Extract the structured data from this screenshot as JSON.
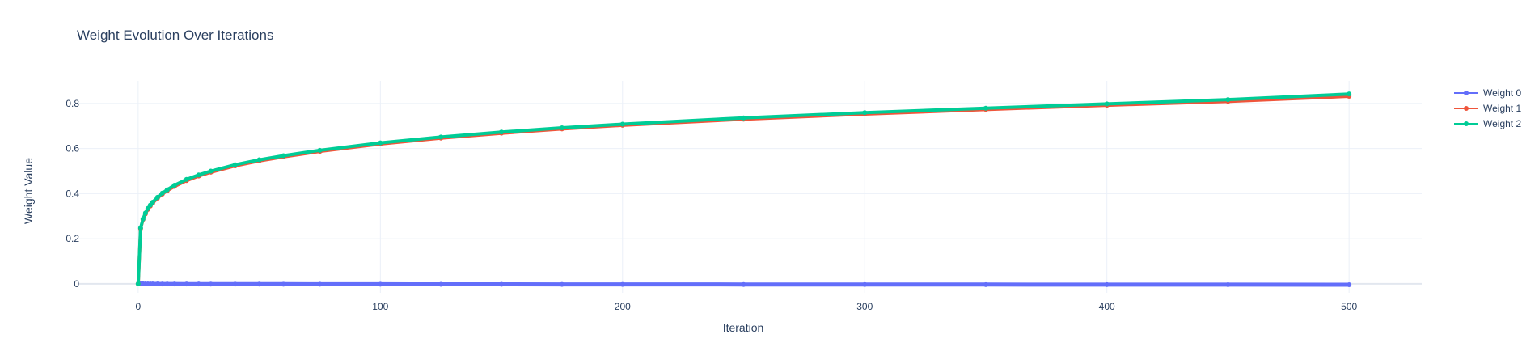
{
  "chart_data": {
    "type": "line",
    "title": "Weight Evolution Over Iterations",
    "xlabel": "Iteration",
    "ylabel": "Weight Value",
    "xlim": [
      -25,
      530
    ],
    "ylim": [
      -0.04,
      0.9
    ],
    "xticks": [
      0,
      100,
      200,
      300,
      400,
      500
    ],
    "xtick_labels": [
      "0",
      "100",
      "200",
      "300",
      "400",
      "500"
    ],
    "yticks": [
      0,
      0.2,
      0.4,
      0.6,
      0.8
    ],
    "ytick_labels": [
      "0",
      "0.2",
      "0.4",
      "0.6",
      "0.8"
    ],
    "grid": true,
    "legend_position": "top-right",
    "markers": true,
    "x": [
      0,
      1,
      2,
      3,
      4,
      5,
      6,
      8,
      10,
      12,
      15,
      20,
      25,
      30,
      40,
      50,
      60,
      75,
      100,
      125,
      150,
      175,
      200,
      250,
      300,
      350,
      400,
      450,
      500
    ],
    "series": [
      {
        "name": "Weight 0",
        "color": "#636efa",
        "values": [
          0,
          -0.0002,
          -0.0003,
          -0.0004,
          -0.0005,
          -0.0006,
          -0.0006,
          -0.0007,
          -0.0008,
          -0.0009,
          -0.001,
          -0.0011,
          -0.0012,
          -0.0013,
          -0.0015,
          -0.0016,
          -0.0017,
          -0.0019,
          -0.0021,
          -0.0023,
          -0.0025,
          -0.0027,
          -0.0028,
          -0.0031,
          -0.0033,
          -0.0035,
          -0.0037,
          -0.0039,
          -0.004
        ]
      },
      {
        "name": "Weight 1",
        "color": "#ef553b",
        "values": [
          0,
          0.245,
          0.285,
          0.31,
          0.33,
          0.345,
          0.358,
          0.38,
          0.398,
          0.413,
          0.432,
          0.458,
          0.478,
          0.495,
          0.523,
          0.545,
          0.563,
          0.587,
          0.62,
          0.646,
          0.668,
          0.687,
          0.703,
          0.73,
          0.753,
          0.773,
          0.792,
          0.809,
          0.832
        ]
      },
      {
        "name": "Weight 2",
        "color": "#00cc96",
        "values": [
          0,
          0.248,
          0.288,
          0.314,
          0.334,
          0.349,
          0.362,
          0.384,
          0.402,
          0.417,
          0.437,
          0.463,
          0.483,
          0.5,
          0.528,
          0.55,
          0.568,
          0.592,
          0.625,
          0.651,
          0.673,
          0.692,
          0.708,
          0.736,
          0.759,
          0.779,
          0.798,
          0.817,
          0.842
        ]
      }
    ]
  }
}
